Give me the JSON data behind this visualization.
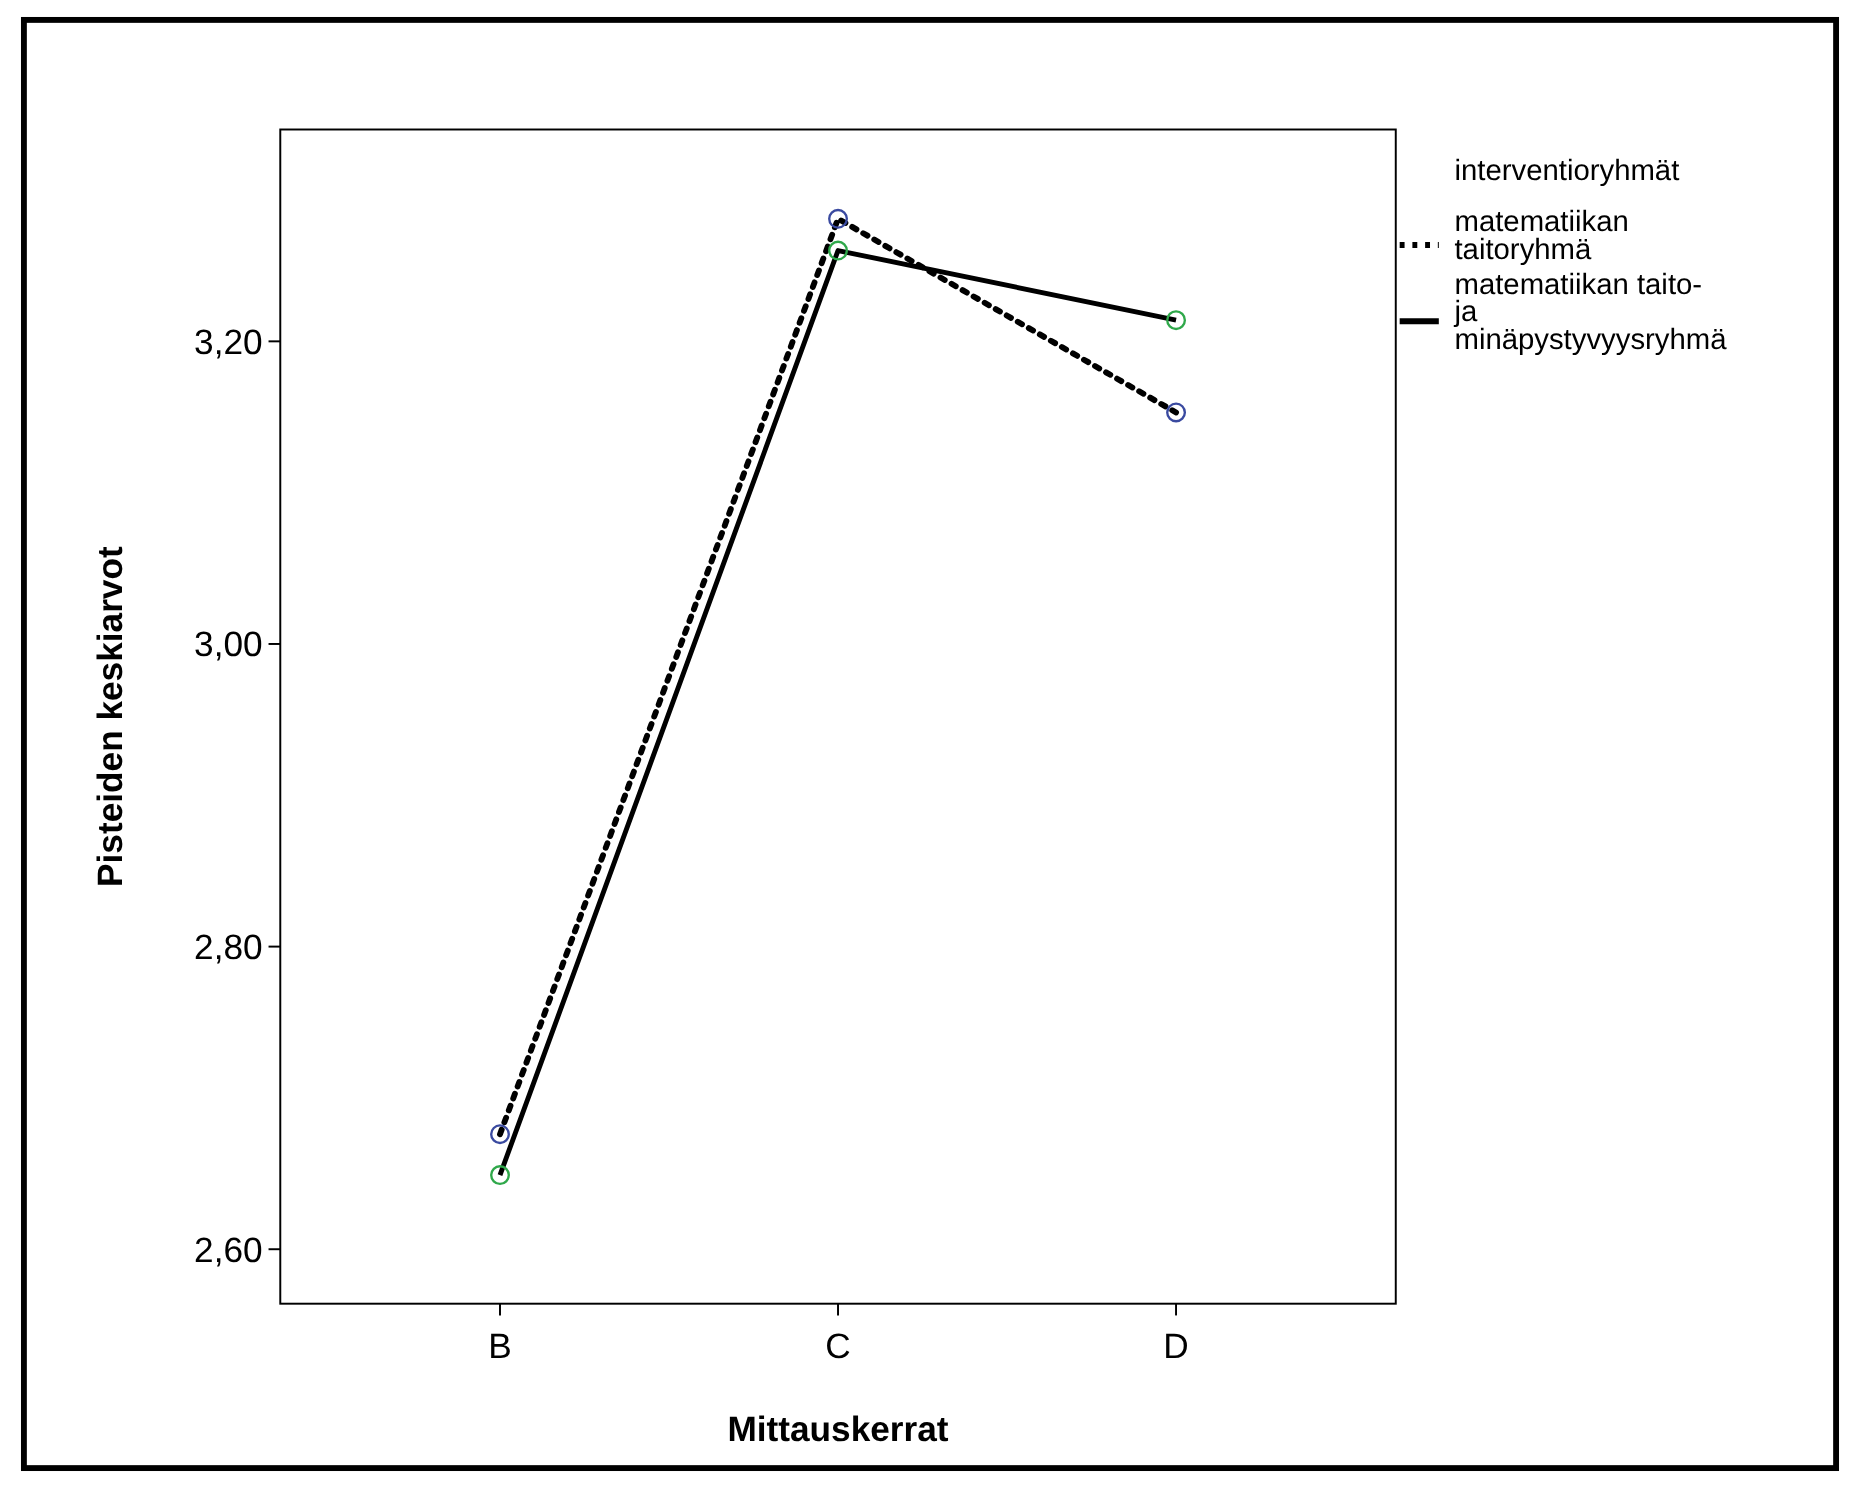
{
  "chart_data": {
    "type": "line",
    "xlabel": "Mittauskerrat",
    "ylabel": "Pisteiden keskiarvot",
    "legend_title": "interventioryhmät",
    "categories": [
      "B",
      "C",
      "D"
    ],
    "series": [
      {
        "name": "matematiikan taitoryhmä",
        "color": "#000000",
        "line_style": "dotted",
        "values": [
          2.676,
          3.281,
          3.153
        ]
      },
      {
        "name": "matematiikan taito-ja minäpystyvyysryhmä",
        "color": "#000000",
        "line_style": "solid",
        "values": [
          2.649,
          3.26,
          3.214
        ]
      }
    ],
    "ylim": [
      2.564,
      3.34
    ],
    "yticks": [
      {
        "value": 2.6,
        "label": "2,60"
      },
      {
        "value": 2.8,
        "label": "2,80"
      },
      {
        "value": 3.0,
        "label": "3,00"
      },
      {
        "value": 3.2,
        "label": "3,20"
      }
    ],
    "marker": "circle",
    "legend": "right",
    "grid": false
  }
}
